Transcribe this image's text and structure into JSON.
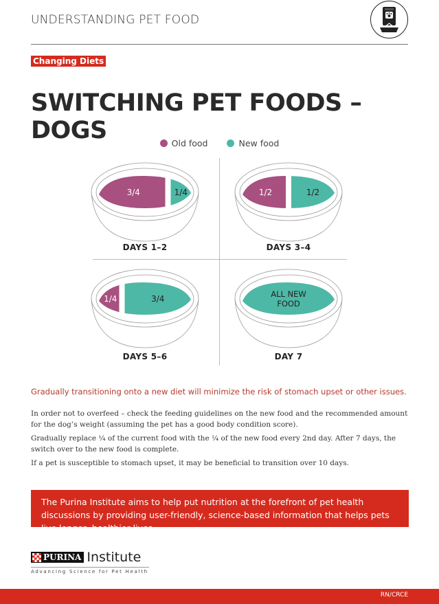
{
  "header": {
    "title": "UNDERSTANDING PET FOOD",
    "icon": "pet-food-bag-icon"
  },
  "tag": "Changing Diets",
  "title": "SWITCHING PET FOODS – DOGS",
  "colors": {
    "old_food": "#a8507f",
    "new_food": "#4db8a5",
    "brand_red": "#d52b1e"
  },
  "legend": [
    {
      "label": "Old food"
    },
    {
      "label": "New food"
    }
  ],
  "bowls": [
    {
      "label": "DAYS 1–2",
      "old_text": "3/4",
      "new_text": "1/4",
      "old_fraction": 0.75,
      "new_fraction": 0.25
    },
    {
      "label": "DAYS 3–4",
      "old_text": "1/2",
      "new_text": "1/2",
      "old_fraction": 0.5,
      "new_fraction": 0.5
    },
    {
      "label": "DAYS 5–6",
      "old_text": "1/4",
      "new_text": "3/4",
      "old_fraction": 0.25,
      "new_fraction": 0.75
    },
    {
      "label": "DAY 7",
      "old_text": "",
      "new_text": "ALL NEW FOOD",
      "old_fraction": 0,
      "new_fraction": 1
    }
  ],
  "intro": "Gradually transitioning onto a new diet will minimize the risk of stomach upset or other issues.",
  "paragraphs": [
    "In order not to overfeed – check the feeding guidelines on the new food and the recommended amount for the dog’s weight (assuming the pet has a good body condition score).",
    "Gradually replace ¼ of the current food with the ¼ of the new food every 2nd day. After 7 days, the switch over to the new food is complete.",
    "If a pet is susceptible to stomach upset, it may be beneficial to transition over 10 days."
  ],
  "banner": "The Purina Institute aims to help put nutrition at the forefront of pet health discussions by providing user-friendly, science-based information that helps pets live longer, healthier lives.",
  "logo": {
    "brand": "PURINA",
    "name": "Institute",
    "tagline": "Advancing Science for Pet Health"
  },
  "footer": {
    "code": "RN/CRCE"
  }
}
